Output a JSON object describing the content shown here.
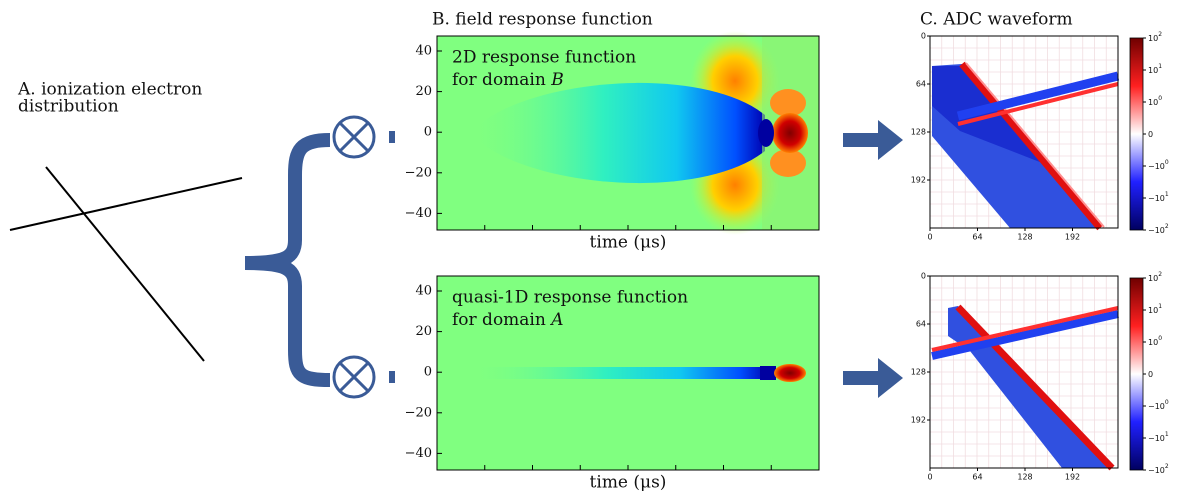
{
  "panel_a": {
    "title_lines": [
      "A. ionization electron",
      "distribution"
    ]
  },
  "panel_b": {
    "title": "B. field response function",
    "plots": [
      {
        "annotation_lines": [
          "2D response function",
          "for domain"
        ],
        "domain": "B",
        "yticks": [
          "40",
          "20",
          "0",
          "−20",
          "−40"
        ],
        "xlabel": "time (μs)"
      },
      {
        "annotation_lines": [
          "quasi-1D response function",
          "for domain"
        ],
        "domain": "A",
        "yticks": [
          "40",
          "20",
          "0",
          "−20",
          "−40"
        ],
        "xlabel": "time (μs)"
      }
    ]
  },
  "panel_c": {
    "title": "C. ADC waveform",
    "plots": [
      {
        "yticks": [
          "0",
          "64",
          "128",
          "192"
        ],
        "xticks": [
          "0",
          "64",
          "128",
          "192"
        ],
        "colorbar_ticks": [
          {
            "base": "10",
            "exp": "2"
          },
          {
            "base": "10",
            "exp": "1"
          },
          {
            "base": "10",
            "exp": "0"
          },
          {
            "base": "0"
          },
          {
            "base": "−10",
            "exp": "0"
          },
          {
            "base": "−10",
            "exp": "1"
          },
          {
            "base": "−10",
            "exp": "2"
          }
        ]
      },
      {
        "yticks": [
          "0",
          "64",
          "128",
          "192"
        ],
        "xticks": [
          "0",
          "64",
          "128",
          "192"
        ],
        "colorbar_ticks": [
          {
            "base": "10",
            "exp": "2"
          },
          {
            "base": "10",
            "exp": "1"
          },
          {
            "base": "10",
            "exp": "0"
          },
          {
            "base": "0"
          },
          {
            "base": "−10",
            "exp": "0"
          },
          {
            "base": "−10",
            "exp": "1"
          },
          {
            "base": "−10",
            "exp": "2"
          }
        ]
      }
    ]
  }
}
